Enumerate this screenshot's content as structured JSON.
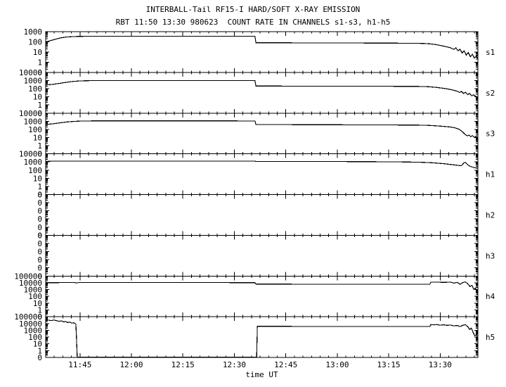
{
  "chart_data": {
    "type": "line",
    "title": "INTERBALL-Tail RF15-I HARD/SOFT X-RAY EMISSION",
    "subtitle": "RBT 11:50 13:30 980623  COUNT RATE IN CHANNELS s1-s3, h1-h5",
    "xlabel": "time UT",
    "y_scale": "log",
    "line_color": "#000000",
    "background_color": "#ffffff",
    "x_axis": {
      "start_time": "11:35",
      "end_time": "13:41",
      "minutes_span": 126,
      "minor_tick_minutes": 2.5,
      "ticks": [
        {
          "label": "11:45",
          "t": 10
        },
        {
          "label": "12:00",
          "t": 25
        },
        {
          "label": "12:15",
          "t": 40
        },
        {
          "label": "12:30",
          "t": 55
        },
        {
          "label": "12:45",
          "t": 70
        },
        {
          "label": "13:00",
          "t": 85
        },
        {
          "label": "13:15",
          "t": 100
        },
        {
          "label": "13:30",
          "t": 115
        }
      ]
    },
    "panels": [
      {
        "name": "s1",
        "y_labels": [
          "1000",
          "100",
          "10",
          "1",
          "0"
        ],
        "top_exponent": 3,
        "series_points": [
          [
            0,
            100
          ],
          [
            1,
            120
          ],
          [
            2,
            150
          ],
          [
            4,
            230
          ],
          [
            6,
            300
          ],
          [
            8,
            330
          ],
          [
            10,
            345
          ],
          [
            14,
            355
          ],
          [
            25,
            360
          ],
          [
            40,
            358
          ],
          [
            55,
            355
          ],
          [
            61,
            350
          ],
          [
            61.3,
            82
          ],
          [
            75,
            80
          ],
          [
            90,
            77
          ],
          [
            105,
            73
          ],
          [
            110,
            70
          ],
          [
            112,
            64
          ],
          [
            113.5,
            55
          ],
          [
            115,
            45
          ],
          [
            116.5,
            35
          ],
          [
            118,
            26
          ],
          [
            119,
            18
          ],
          [
            119.6,
            26
          ],
          [
            120.2,
            13
          ],
          [
            120.8,
            19
          ],
          [
            121.4,
            8
          ],
          [
            122,
            13
          ],
          [
            122.6,
            5
          ],
          [
            123.2,
            9
          ],
          [
            123.8,
            3.5
          ],
          [
            124.4,
            6
          ],
          [
            125,
            2.5
          ],
          [
            125.5,
            4
          ],
          [
            126,
            2
          ]
        ]
      },
      {
        "name": "s2",
        "y_labels": [
          "10000",
          "1000",
          "100",
          "10",
          "1",
          "0"
        ],
        "top_exponent": 4,
        "series_points": [
          [
            0,
            280
          ],
          [
            2,
            340
          ],
          [
            4,
            450
          ],
          [
            6,
            600
          ],
          [
            8,
            780
          ],
          [
            10,
            890
          ],
          [
            13,
            970
          ],
          [
            20,
            1000
          ],
          [
            35,
            1010
          ],
          [
            50,
            1005
          ],
          [
            61,
            995
          ],
          [
            61.3,
            210
          ],
          [
            75,
            206
          ],
          [
            90,
            200
          ],
          [
            105,
            192
          ],
          [
            110,
            185
          ],
          [
            112,
            168
          ],
          [
            114,
            140
          ],
          [
            116,
            112
          ],
          [
            117.5,
            88
          ],
          [
            119,
            64
          ],
          [
            120,
            48
          ],
          [
            120.7,
            34
          ],
          [
            121.2,
            46
          ],
          [
            121.8,
            26
          ],
          [
            122.4,
            36
          ],
          [
            123,
            19
          ],
          [
            123.6,
            26
          ],
          [
            124.2,
            13
          ],
          [
            124.8,
            18
          ],
          [
            125.4,
            11
          ],
          [
            126,
            9
          ]
        ]
      },
      {
        "name": "s3",
        "y_labels": [
          "10000",
          "1000",
          "100",
          "10",
          "1",
          "0"
        ],
        "top_exponent": 4,
        "series_points": [
          [
            0,
            400
          ],
          [
            2,
            480
          ],
          [
            4,
            620
          ],
          [
            6,
            800
          ],
          [
            8,
            950
          ],
          [
            10,
            1050
          ],
          [
            14,
            1100
          ],
          [
            30,
            1120
          ],
          [
            50,
            1110
          ],
          [
            61,
            1090
          ],
          [
            61.3,
            395
          ],
          [
            75,
            382
          ],
          [
            90,
            366
          ],
          [
            105,
            346
          ],
          [
            110,
            330
          ],
          [
            112,
            305
          ],
          [
            114,
            270
          ],
          [
            116,
            235
          ],
          [
            118,
            195
          ],
          [
            119.5,
            150
          ],
          [
            120.5,
            105
          ],
          [
            121.3,
            60
          ],
          [
            121.9,
            35
          ],
          [
            122.4,
            22
          ],
          [
            122.9,
            16
          ],
          [
            123.4,
            20
          ],
          [
            123.9,
            13
          ],
          [
            124.4,
            17
          ],
          [
            124.9,
            11
          ],
          [
            125.5,
            14
          ],
          [
            126,
            9
          ]
        ]
      },
      {
        "name": "h1",
        "y_labels": [
          "10000",
          "1000",
          "100",
          "10",
          "1",
          "0"
        ],
        "top_exponent": 4,
        "series_points": [
          [
            0,
            1150
          ],
          [
            1,
            1230
          ],
          [
            3,
            1270
          ],
          [
            20,
            1280
          ],
          [
            45,
            1270
          ],
          [
            61,
            1260
          ],
          [
            61.3,
            1180
          ],
          [
            80,
            1140
          ],
          [
            95,
            1080
          ],
          [
            105,
            1000
          ],
          [
            110,
            900
          ],
          [
            113,
            780
          ],
          [
            116,
            620
          ],
          [
            118,
            500
          ],
          [
            120,
            390
          ],
          [
            121.2,
            340
          ],
          [
            121.9,
            750
          ],
          [
            122.4,
            880
          ],
          [
            123,
            460
          ],
          [
            123.7,
            300
          ],
          [
            124.5,
            230
          ],
          [
            125.2,
            190
          ],
          [
            126,
            170
          ]
        ]
      },
      {
        "name": "h2",
        "y_labels": [
          "0",
          "0",
          "0",
          "0",
          "0",
          "0"
        ],
        "top_exponent": null,
        "series_points": []
      },
      {
        "name": "h3",
        "y_labels": [
          "0",
          "0",
          "0",
          "0",
          "0",
          "0"
        ],
        "top_exponent": null,
        "series_points": []
      },
      {
        "name": "h4",
        "y_labels": [
          "100000",
          "10000",
          "1000",
          "100",
          "10",
          "1",
          "0"
        ],
        "top_exponent": 5,
        "series_points": [
          [
            0,
            10500
          ],
          [
            8.5,
            10800
          ],
          [
            9,
            9300
          ],
          [
            9.5,
            10800
          ],
          [
            25,
            10800
          ],
          [
            45,
            10700
          ],
          [
            61,
            10500
          ],
          [
            61.3,
            6300
          ],
          [
            80,
            6200
          ],
          [
            100,
            6100
          ],
          [
            112,
            6050
          ],
          [
            112.3,
            12000
          ],
          [
            114,
            12500
          ],
          [
            116,
            11500
          ],
          [
            118,
            12500
          ],
          [
            119,
            9000
          ],
          [
            120,
            11500
          ],
          [
            120.8,
            6000
          ],
          [
            121.5,
            10000
          ],
          [
            122.3,
            14000
          ],
          [
            123,
            7500
          ],
          [
            123.7,
            2800
          ],
          [
            124.3,
            4200
          ],
          [
            124.8,
            1100
          ],
          [
            125.3,
            1700
          ],
          [
            125.8,
            400
          ],
          [
            126,
            160
          ]
        ]
      },
      {
        "name": "h5",
        "y_labels": [
          "100000",
          "10000",
          "1000",
          "100",
          "10",
          "1",
          "0"
        ],
        "top_exponent": 5,
        "series_points": [
          [
            0,
            26000
          ],
          [
            0.8,
            31000
          ],
          [
            1.6,
            27000
          ],
          [
            2.4,
            33000
          ],
          [
            3.2,
            26000
          ],
          [
            4,
            21000
          ],
          [
            4.6,
            25000
          ],
          [
            5.2,
            17000
          ],
          [
            5.8,
            20000
          ],
          [
            6.4,
            14000
          ],
          [
            7,
            16500
          ],
          [
            7.6,
            11500
          ],
          [
            8.2,
            13000
          ],
          [
            8.8,
            8500
          ],
          [
            9.2,
            0
          ],
          [
            61.5,
            0
          ],
          [
            61.7,
            3800
          ],
          [
            80,
            3750
          ],
          [
            100,
            3700
          ],
          [
            112,
            3650
          ],
          [
            112.3,
            7000
          ],
          [
            113.2,
            6300
          ],
          [
            114,
            7000
          ],
          [
            115,
            5700
          ],
          [
            116,
            6500
          ],
          [
            117,
            5300
          ],
          [
            118,
            6000
          ],
          [
            119,
            4500
          ],
          [
            120,
            5100
          ],
          [
            120.8,
            3600
          ],
          [
            121.6,
            5500
          ],
          [
            122.4,
            6600
          ],
          [
            123.1,
            3200
          ],
          [
            123.6,
            1300
          ],
          [
            124.1,
            2100
          ],
          [
            124.6,
            500
          ],
          [
            125.1,
            150
          ],
          [
            125.6,
            250
          ],
          [
            126,
            25
          ]
        ]
      }
    ]
  }
}
